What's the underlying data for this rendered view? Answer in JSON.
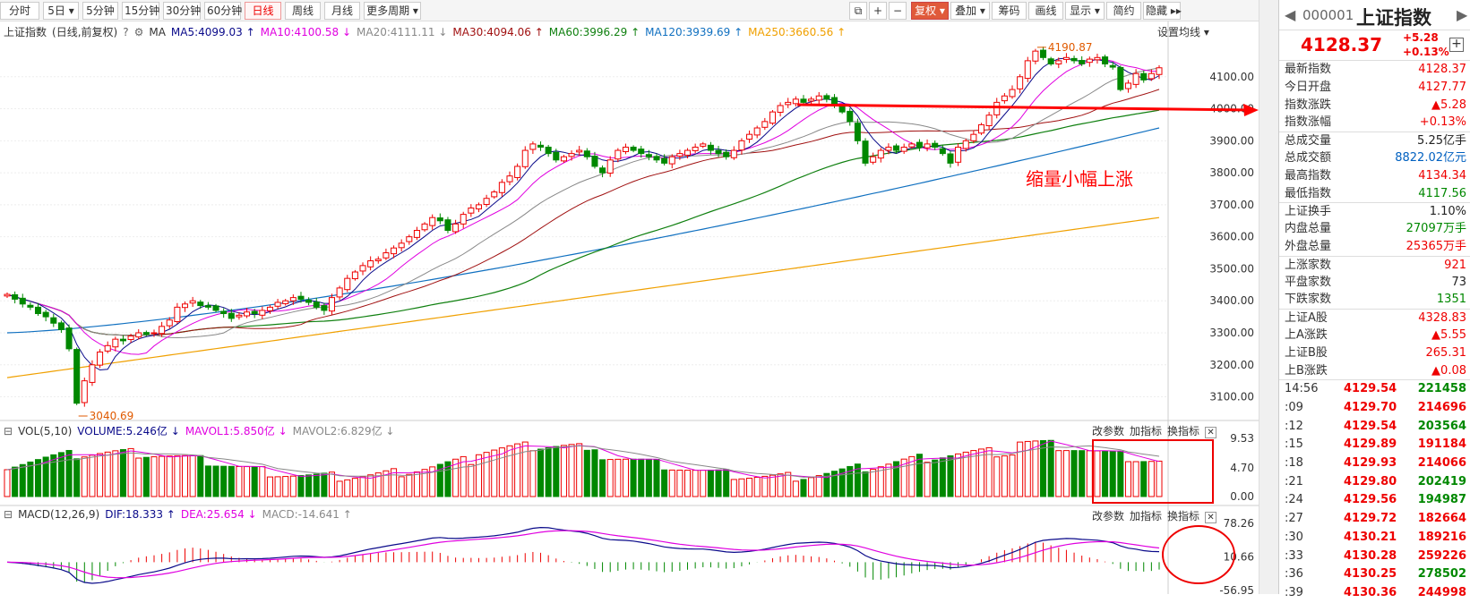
{
  "toolbar": {
    "left_buttons": [
      "分时",
      "5日 ▾",
      "5分钟",
      "15分钟",
      "30分钟",
      "60分钟",
      "日线",
      "周线",
      "月线",
      "更多周期 ▾"
    ],
    "active": "日线",
    "right_buttons": [
      "复权 ▾",
      "叠加 ▾",
      "筹码",
      "画线",
      "显示 ▾",
      "简约",
      "隐藏 ▸▸"
    ]
  },
  "main_legend": {
    "name": "上证指数",
    "mode": "(日线,前复权)",
    "ma_label": "MA",
    "ma_items": [
      {
        "text": "MA5:4099.03 ↑",
        "color": "#0a0a8a"
      },
      {
        "text": "MA10:4100.58 ↓",
        "color": "#e000e0"
      },
      {
        "text": "MA20:4111.11 ↓",
        "color": "#888888"
      },
      {
        "text": "MA30:4094.06 ↑",
        "color": "#a01010"
      },
      {
        "text": "MA60:3996.29 ↑",
        "color": "#108010"
      },
      {
        "text": "MA120:3939.69 ↑",
        "color": "#1070c0"
      },
      {
        "text": "MA250:3660.56 ↑",
        "color": "#f0a000"
      }
    ],
    "settings": "设置均线 ▾"
  },
  "annotations": {
    "high_label": "4190.87",
    "low_label": "3040.69",
    "note": "缩量小幅上涨"
  },
  "volume_legend": {
    "items": [
      {
        "text": "VOL(5,10)",
        "color": "#333333"
      },
      {
        "text": "VOLUME:5.246亿 ↓",
        "color": "#0a0a8a"
      },
      {
        "text": "MAVOL1:5.850亿 ↓",
        "color": "#e000e0"
      },
      {
        "text": "MAVOL2:6.829亿 ↓",
        "color": "#888888"
      }
    ],
    "tools": [
      "改参数",
      "加指标",
      "换指标"
    ]
  },
  "macd_legend": {
    "items": [
      {
        "text": "MACD(12,26,9)",
        "color": "#333333"
      },
      {
        "text": "DIF:18.333 ↑",
        "color": "#0a0a8a"
      },
      {
        "text": "DEA:25.654 ↓",
        "color": "#e000e0"
      },
      {
        "text": "MACD:-14.641 ↑",
        "color": "#888888"
      }
    ],
    "tools": [
      "改参数",
      "加指标",
      "换指标"
    ]
  },
  "chart_data": [
    {
      "type": "candlestick",
      "title": "上证指数",
      "ylim": [
        3040,
        4200
      ],
      "y_ticks": [
        "4100.00",
        "4000.00",
        "3900.00",
        "3800.00",
        "3700.00",
        "3600.00",
        "3500.00",
        "3400.00",
        "3300.00",
        "3200.00",
        "3100.00"
      ],
      "y_tick_values": [
        4100,
        4000,
        3900,
        3800,
        3700,
        3600,
        3500,
        3400,
        3300,
        3200,
        3100
      ],
      "closes": [
        3420,
        3405,
        3390,
        3380,
        3360,
        3350,
        3330,
        3310,
        3250,
        3080,
        3150,
        3200,
        3240,
        3260,
        3280,
        3275,
        3290,
        3300,
        3295,
        3300,
        3320,
        3340,
        3380,
        3390,
        3400,
        3385,
        3380,
        3370,
        3360,
        3345,
        3355,
        3365,
        3360,
        3370,
        3380,
        3395,
        3400,
        3410,
        3405,
        3395,
        3380,
        3370,
        3410,
        3440,
        3470,
        3490,
        3510,
        3525,
        3530,
        3550,
        3565,
        3580,
        3600,
        3620,
        3640,
        3660,
        3650,
        3620,
        3640,
        3670,
        3690,
        3700,
        3720,
        3740,
        3770,
        3790,
        3820,
        3870,
        3890,
        3880,
        3860,
        3840,
        3850,
        3860,
        3870,
        3850,
        3820,
        3800,
        3840,
        3870,
        3880,
        3870,
        3860,
        3850,
        3840,
        3830,
        3850,
        3860,
        3870,
        3880,
        3890,
        3870,
        3860,
        3850,
        3870,
        3900,
        3920,
        3940,
        3960,
        3990,
        4010,
        4020,
        4030,
        4020,
        4030,
        4040,
        4030,
        4010,
        3990,
        3960,
        3900,
        3830,
        3850,
        3870,
        3880,
        3870,
        3880,
        3890,
        3880,
        3890,
        3880,
        3860,
        3830,
        3880,
        3900,
        3920,
        3950,
        3980,
        4020,
        4040,
        4060,
        4100,
        4150,
        4180,
        4160,
        4140,
        4150,
        4160,
        4150,
        4140,
        4155,
        4160,
        4140,
        4130,
        4060,
        4080,
        4110,
        4090,
        4110,
        4128
      ],
      "ma250": [
        3160,
        3660
      ]
    },
    {
      "type": "bar",
      "title": "VOL(5,10)",
      "ylim": [
        0,
        9.53
      ],
      "y_ticks": [
        "9.53",
        "4.70",
        "0.00"
      ],
      "y_tick_values": [
        9.53,
        4.7,
        0.0
      ]
    },
    {
      "type": "bar",
      "title": "MACD(12,26,9)",
      "ylim": [
        -56.95,
        78.26
      ],
      "y_ticks": [
        "78.26",
        "10.66",
        "-56.95"
      ],
      "y_tick_values": [
        78.26,
        10.66,
        -56.95
      ]
    }
  ],
  "sidebar": {
    "code": "000001",
    "name": "上证指数",
    "price": "4128.37",
    "change": "+5.28",
    "change_pct": "+0.13%",
    "stats": [
      {
        "k": "最新指数",
        "v": "4128.37",
        "c": "red"
      },
      {
        "k": "今日开盘",
        "v": "4127.77",
        "c": "red"
      },
      {
        "k": "指数涨跌",
        "v": "▲5.28",
        "c": "red"
      },
      {
        "k": "指数涨幅",
        "v": "+0.13%",
        "c": "red"
      },
      {
        "k": "总成交量",
        "v": "5.25亿手",
        "c": "black"
      },
      {
        "k": "总成交额",
        "v": "8822.02亿元",
        "c": "blue"
      },
      {
        "k": "最高指数",
        "v": "4134.34",
        "c": "red"
      },
      {
        "k": "最低指数",
        "v": "4117.56",
        "c": "green"
      },
      {
        "k": "上证换手",
        "v": "1.10%",
        "c": "black"
      },
      {
        "k": "内盘总量",
        "v": "27097万手",
        "c": "green"
      },
      {
        "k": "外盘总量",
        "v": "25365万手",
        "c": "red"
      },
      {
        "k": "上涨家数",
        "v": "921",
        "c": "red"
      },
      {
        "k": "平盘家数",
        "v": "73",
        "c": "black"
      },
      {
        "k": "下跌家数",
        "v": "1351",
        "c": "green"
      },
      {
        "k": "上证A股",
        "v": "4328.83",
        "c": "red"
      },
      {
        "k": "上A涨跌",
        "v": "▲5.55",
        "c": "red"
      },
      {
        "k": "上证B股",
        "v": "265.31",
        "c": "red"
      },
      {
        "k": "上B涨跌",
        "v": "▲0.08",
        "c": "red"
      }
    ],
    "ticks": [
      {
        "t": "14:56",
        "p": "4129.54",
        "q": "221458",
        "c": "green"
      },
      {
        "t": ":09",
        "p": "4129.70",
        "q": "214696",
        "c": "red"
      },
      {
        "t": ":12",
        "p": "4129.54",
        "q": "203564",
        "c": "green"
      },
      {
        "t": ":15",
        "p": "4129.89",
        "q": "191184",
        "c": "red"
      },
      {
        "t": ":18",
        "p": "4129.93",
        "q": "214066",
        "c": "red"
      },
      {
        "t": ":21",
        "p": "4129.80",
        "q": "202419",
        "c": "green"
      },
      {
        "t": ":24",
        "p": "4129.56",
        "q": "194987",
        "c": "green"
      },
      {
        "t": ":27",
        "p": "4129.72",
        "q": "182664",
        "c": "red"
      },
      {
        "t": ":30",
        "p": "4130.21",
        "q": "189216",
        "c": "red"
      },
      {
        "t": ":33",
        "p": "4130.28",
        "q": "259226",
        "c": "red"
      },
      {
        "t": ":36",
        "p": "4130.25",
        "q": "278502",
        "c": "green"
      },
      {
        "t": ":39",
        "p": "4130.36",
        "q": "244998",
        "c": "red"
      }
    ]
  }
}
